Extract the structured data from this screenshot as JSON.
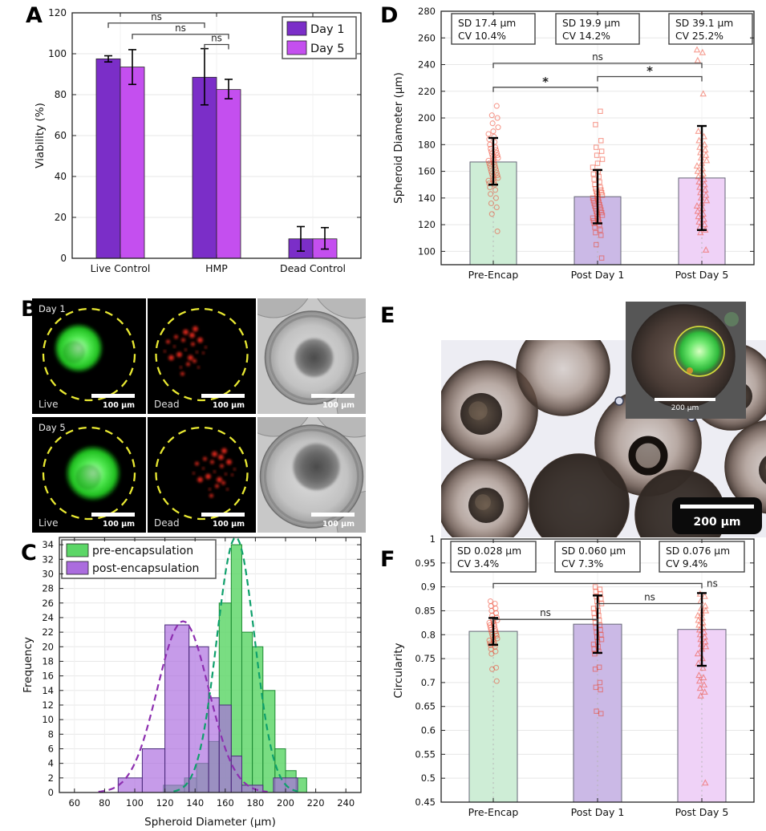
{
  "figure": {
    "panels": {
      "a": "A",
      "b": "B",
      "c": "C",
      "d": "D",
      "e": "E",
      "f": "F"
    }
  },
  "chart_data": [
    {
      "panel": "A",
      "type": "bar",
      "ylabel": "Viability (%)",
      "ylim": [
        0,
        120
      ],
      "ystep": 20,
      "categories": [
        "Live Control",
        "HMP",
        "Dead Control"
      ],
      "series": [
        {
          "name": "Day 1",
          "color": "#7B2EC8",
          "values": [
            97.5,
            88.5,
            9.5
          ],
          "err_low": [
            96,
            75,
            3.5
          ],
          "err_high": [
            99,
            102.5,
            15.5
          ]
        },
        {
          "name": "Day 5",
          "color": "#C44FEF",
          "values": [
            93.5,
            82.5,
            9.5
          ],
          "err_low": [
            85,
            78,
            4.5
          ],
          "err_high": [
            102,
            87.5,
            15
          ]
        }
      ],
      "legend": {
        "labels": [
          "Day 1",
          "Day 5"
        ],
        "position": "top-right"
      },
      "significance": [
        {
          "label": "ns",
          "from": [
            0,
            0
          ],
          "to": [
            1,
            0
          ],
          "y": 115
        },
        {
          "label": "ns",
          "from": [
            0,
            1
          ],
          "to": [
            1,
            1
          ],
          "y": 109.5
        },
        {
          "label": "ns",
          "from": [
            1,
            0
          ],
          "to": [
            1,
            1
          ],
          "y": 104.5
        }
      ]
    },
    {
      "panel": "C",
      "type": "histogram",
      "xlabel": "Spheroid Diameter (µm)",
      "ylabel": "Frequency",
      "xlim": [
        50,
        250
      ],
      "xstep": 20,
      "ylim": [
        0,
        35
      ],
      "ystep": 2,
      "legend_position": "top-left",
      "series": [
        {
          "name": "pre-encapsulation",
          "color": "#5CD667",
          "edge": "#1d8a33",
          "bins": [
            {
              "x": 119,
              "w": 14,
              "f": 1
            },
            {
              "x": 133,
              "w": 8,
              "f": 2
            },
            {
              "x": 141,
              "w": 8,
              "f": 4
            },
            {
              "x": 149,
              "w": 7,
              "f": 7
            },
            {
              "x": 156,
              "w": 8,
              "f": 26
            },
            {
              "x": 164,
              "w": 7,
              "f": 34
            },
            {
              "x": 171,
              "w": 7,
              "f": 22
            },
            {
              "x": 178,
              "w": 7,
              "f": 20
            },
            {
              "x": 185,
              "w": 8,
              "f": 14
            },
            {
              "x": 193,
              "w": 7,
              "f": 6
            },
            {
              "x": 200,
              "w": 7,
              "f": 3
            },
            {
              "x": 207,
              "w": 7,
              "f": 2
            }
          ],
          "fit_curve": {
            "mean": 167,
            "sd": 12.5,
            "peak": 35,
            "color": "#0fa06c"
          }
        },
        {
          "name": "post-encapsulation",
          "color": "#AB6CDE",
          "edge": "#4a2a7a",
          "bins": [
            {
              "x": 89,
              "w": 16,
              "f": 2
            },
            {
              "x": 105,
              "w": 15,
              "f": 6
            },
            {
              "x": 120,
              "w": 16,
              "f": 23
            },
            {
              "x": 136,
              "w": 13,
              "f": 20
            },
            {
              "x": 149,
              "w": 7,
              "f": 13
            },
            {
              "x": 156,
              "w": 8,
              "f": 12
            },
            {
              "x": 164,
              "w": 7,
              "f": 5
            },
            {
              "x": 171,
              "w": 14,
              "f": 1
            },
            {
              "x": 192,
              "w": 16,
              "f": 2
            }
          ],
          "fit_curve": {
            "mean": 132,
            "sd": 17,
            "peak": 23.5,
            "color": "#8d2fb0"
          }
        }
      ]
    },
    {
      "panel": "D",
      "type": "bar-scatter",
      "ylabel": "Spheroid Diameter (µm)",
      "ylim": [
        90,
        280
      ],
      "ystep": 20,
      "categories": [
        "Pre-Encap",
        "Post Day 1",
        "Post Day 5"
      ],
      "bar_values": [
        167,
        141,
        155
      ],
      "bar_colors": [
        "#CEEDD6",
        "#CBB9E6",
        "#EFD2F7"
      ],
      "err_low": [
        150,
        121,
        116
      ],
      "err_high": [
        185,
        161,
        194
      ],
      "markers": [
        "circle",
        "square",
        "triangle"
      ],
      "marker_color": "#F03B24",
      "stats": [
        {
          "line1": "SD 17.4 µm",
          "line2": "CV 10.4%"
        },
        {
          "line1": "SD 19.9 µm",
          "line2": "CV 14.2%"
        },
        {
          "line1": "SD 39.1 µm",
          "line2": "CV 25.2%"
        }
      ],
      "significance": [
        {
          "label": "*",
          "from": 0,
          "to": 1,
          "y": 223
        },
        {
          "label": "*",
          "from": 1,
          "to": 2,
          "y": 231
        },
        {
          "label": "ns",
          "from": 0,
          "to": 2,
          "y": 241
        }
      ],
      "scatter": [
        [
          115,
          128,
          133,
          136,
          140,
          143,
          146,
          148,
          150,
          151,
          152,
          153,
          154,
          155,
          156,
          157,
          158,
          159,
          160,
          161,
          162,
          163,
          164,
          165,
          166,
          167,
          168,
          169,
          170,
          171,
          172,
          173,
          174,
          175,
          176,
          177,
          178,
          180,
          182,
          184,
          186,
          188,
          190,
          193,
          196,
          200,
          202,
          209
        ],
        [
          95,
          105,
          112,
          114,
          116,
          118,
          120,
          121,
          122,
          123,
          124,
          125,
          126,
          127,
          128,
          129,
          130,
          131,
          132,
          133,
          134,
          135,
          136,
          137,
          138,
          139,
          140,
          141,
          142,
          143,
          144,
          145,
          146,
          147,
          148,
          150,
          152,
          154,
          156,
          158,
          160,
          163,
          166,
          169,
          172,
          175,
          178,
          183,
          195,
          205
        ],
        [
          101,
          114,
          116,
          118,
          120,
          122,
          124,
          126,
          128,
          130,
          132,
          134,
          136,
          138,
          140,
          142,
          144,
          146,
          148,
          150,
          152,
          154,
          156,
          158,
          160,
          162,
          164,
          166,
          168,
          170,
          172,
          174,
          176,
          178,
          180,
          183,
          186,
          190,
          218,
          243,
          249,
          251,
          277
        ]
      ]
    },
    {
      "panel": "F",
      "type": "bar-scatter",
      "ylabel": "Circularity",
      "ylim": [
        0.45,
        1
      ],
      "ystep": 0.05,
      "categories": [
        "Pre-Encap",
        "Post Day 1",
        "Post Day 5"
      ],
      "bar_values": [
        0.807,
        0.822,
        0.811
      ],
      "bar_colors": [
        "#CEEDD6",
        "#CBB9E6",
        "#EFD2F7"
      ],
      "err_low": [
        0.779,
        0.762,
        0.735
      ],
      "err_high": [
        0.835,
        0.882,
        0.887
      ],
      "markers": [
        "circle",
        "square",
        "triangle"
      ],
      "marker_color": "#F03B24",
      "stats": [
        {
          "line1": "SD 0.028 µm",
          "line2": "CV 3.4%"
        },
        {
          "line1": "SD 0.060 µm",
          "line2": "CV 7.3%"
        },
        {
          "line1": "SD 0.076 µm",
          "line2": "CV 9.4%"
        }
      ],
      "significance": [
        {
          "label": "ns",
          "from": 0,
          "to": 1,
          "y": 0.832
        },
        {
          "label": "ns",
          "from": 1,
          "to": 2,
          "y": 0.865
        },
        {
          "label": "ns",
          "from": 0,
          "to": 2,
          "y": 0.907,
          "label_pos": "right"
        }
      ],
      "scatter": [
        [
          0.703,
          0.728,
          0.731,
          0.76,
          0.765,
          0.77,
          0.775,
          0.778,
          0.78,
          0.782,
          0.785,
          0.788,
          0.79,
          0.792,
          0.795,
          0.798,
          0.8,
          0.802,
          0.805,
          0.807,
          0.81,
          0.812,
          0.815,
          0.818,
          0.82,
          0.822,
          0.825,
          0.828,
          0.83,
          0.833,
          0.836,
          0.84,
          0.845,
          0.85,
          0.855,
          0.86,
          0.865,
          0.87
        ],
        [
          0.635,
          0.64,
          0.685,
          0.69,
          0.7,
          0.728,
          0.732,
          0.76,
          0.765,
          0.77,
          0.775,
          0.78,
          0.785,
          0.79,
          0.795,
          0.8,
          0.805,
          0.81,
          0.815,
          0.82,
          0.825,
          0.83,
          0.835,
          0.84,
          0.845,
          0.85,
          0.855,
          0.86,
          0.865,
          0.87,
          0.875,
          0.88,
          0.885,
          0.89,
          0.895,
          0.9
        ],
        [
          0.49,
          0.672,
          0.68,
          0.688,
          0.695,
          0.703,
          0.71,
          0.715,
          0.73,
          0.74,
          0.75,
          0.76,
          0.77,
          0.775,
          0.78,
          0.785,
          0.79,
          0.795,
          0.8,
          0.805,
          0.81,
          0.815,
          0.82,
          0.825,
          0.83,
          0.835,
          0.84,
          0.845,
          0.85,
          0.855,
          0.86,
          0.87,
          0.88,
          0.885
        ]
      ]
    }
  ],
  "panel_b": {
    "rows": [
      {
        "day": "Day 1",
        "tiles": [
          {
            "kind": "live",
            "label": "Live",
            "scale": "100 µm"
          },
          {
            "kind": "dead",
            "label": "Dead",
            "scale": "100 µm"
          },
          {
            "kind": "brightfield",
            "scale": "100 µm"
          }
        ]
      },
      {
        "day": "Day 5",
        "tiles": [
          {
            "kind": "live",
            "label": "Live",
            "scale": "100 µm"
          },
          {
            "kind": "dead",
            "label": "Dead",
            "scale": "100 µm"
          },
          {
            "kind": "brightfield",
            "scale": "100 µm"
          }
        ]
      }
    ]
  },
  "panel_e": {
    "scale_main": "200 µm",
    "inset_scale": "200 µm"
  }
}
